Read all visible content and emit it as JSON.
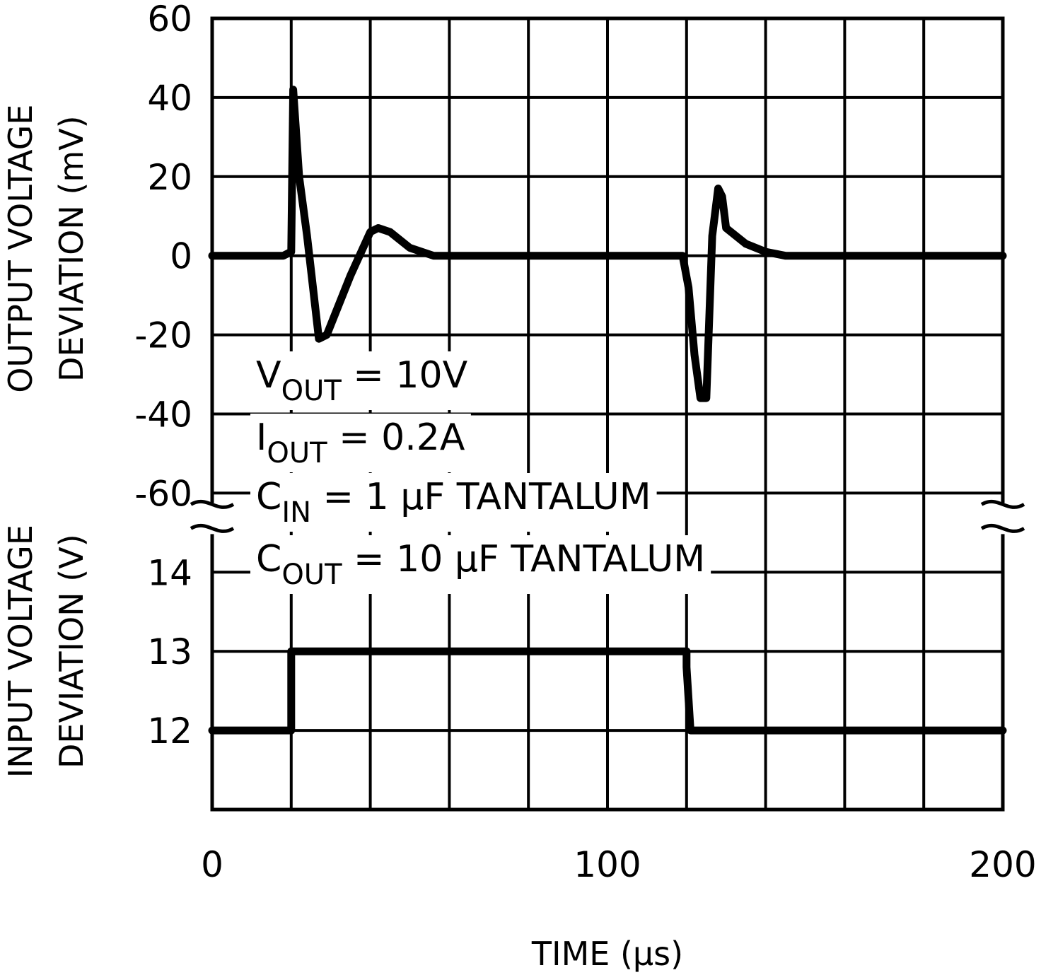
{
  "chart_data": {
    "type": "line",
    "title": "",
    "xlabel": "TIME (µs)",
    "x_ticks": [
      "0",
      "100",
      "200"
    ],
    "xlim": [
      0,
      200
    ],
    "grid": true,
    "panels": [
      {
        "name": "output",
        "ylabel_line1": "OUTPUT VOLTAGE",
        "ylabel_line2": "DEVIATION (mV)",
        "ylim": [
          -60,
          60
        ],
        "y_ticks": [
          "60",
          "40",
          "20",
          "0",
          "-20",
          "-40",
          "-60"
        ],
        "series": [
          {
            "name": "Output voltage deviation",
            "x": [
              0,
              18,
              20,
              20.5,
              22,
              24,
              27,
              29,
              35,
              40,
              42,
              45,
              50,
              56,
              100,
              119,
              120.5,
              122,
              123.5,
              125,
              126.5,
              128,
              129,
              130,
              135,
              140,
              145,
              150,
              160,
              200
            ],
            "y": [
              0,
              0,
              1,
              42,
              20,
              5,
              -21,
              -20,
              -5,
              6,
              7,
              6,
              2,
              0,
              0,
              0,
              -8,
              -25,
              -36,
              -36,
              5,
              17,
              15,
              7,
              3,
              1,
              0,
              0,
              0,
              0
            ]
          }
        ]
      },
      {
        "name": "input",
        "ylabel_line1": "INPUT VOLTAGE",
        "ylabel_line2": "DEVIATION (V)",
        "ylim": [
          11,
          15
        ],
        "y_ticks": [
          "14",
          "13",
          "12"
        ],
        "series": [
          {
            "name": "Input voltage",
            "x": [
              0,
              19,
              20,
              20,
              120,
              120,
              121,
              200
            ],
            "y": [
              12,
              12,
              12,
              13,
              13,
              12.8,
              12,
              12
            ]
          }
        ]
      }
    ],
    "annotations": [
      {
        "main": "V",
        "sub": "OUT",
        "rest": " = 10V"
      },
      {
        "main": "I",
        "sub": "OUT",
        "rest": " = 0.2A"
      },
      {
        "main": "C",
        "sub": "IN",
        "rest": " = 1 µF TANTALUM"
      },
      {
        "main": "C",
        "sub": "OUT",
        "rest": " = 10 µF TANTALUM"
      }
    ]
  }
}
